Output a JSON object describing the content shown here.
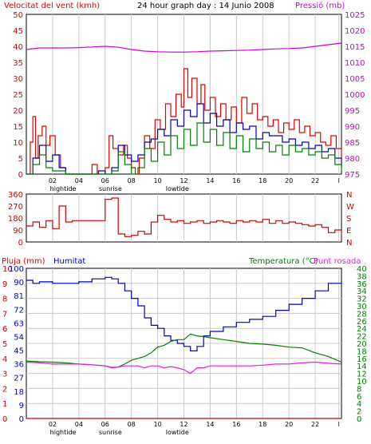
{
  "colors": {
    "wind": "#e00000",
    "gust": "#e00000",
    "avg": "#0000c0",
    "green": "#008000",
    "pressure": "#d000d0",
    "direction": "#d00000",
    "humidity": "#0000c0",
    "temperature": "#008000",
    "dewpoint": "#e020e0",
    "rain": "#d00000",
    "grid": "#c8c8c8"
  },
  "chart_data": [
    {
      "type": "line",
      "title": "24 hour graph day : 14 Junio 2008",
      "ylabel_left": "Velocitat del vent (kmh)",
      "ylabel_right": "Pressió (mb)",
      "ylim_left": [
        0,
        50
      ],
      "yticks_left": [
        "0",
        "5",
        "10",
        "15",
        "20",
        "25",
        "30",
        "35",
        "40",
        "45",
        "50"
      ],
      "ylim_right": [
        975,
        1025
      ],
      "yticks_right": [
        "975",
        "980",
        "985",
        "990",
        "995",
        "1000",
        "1005",
        "1010",
        "1015",
        "1020",
        "1025"
      ],
      "xlim": [
        0,
        24
      ],
      "xticks": [
        "02",
        "04",
        "06",
        "08",
        "10",
        "12",
        "14",
        "16",
        "18",
        "20",
        "22",
        "l"
      ],
      "xtick_positions": [
        2,
        4,
        6,
        8,
        10,
        12,
        14,
        16,
        18,
        20,
        22,
        23.8
      ],
      "annotations": [
        {
          "text": "hightide",
          "x": 2.8
        },
        {
          "text": "sunrise",
          "x": 6.4
        },
        {
          "text": "lowtide",
          "x": 11.5
        }
      ],
      "series": [
        {
          "key": "gust",
          "color": "#e00000",
          "x": [
            0,
            0.3,
            0.5,
            0.7,
            0.9,
            1.2,
            1.5,
            1.8,
            2.2,
            2.6,
            3,
            4,
            4.8,
            5,
            5.4,
            6,
            6.3,
            6.6,
            7,
            7.4,
            7.7,
            8,
            8.3,
            8.6,
            9,
            9.4,
            9.8,
            10.2,
            10.6,
            11,
            11.4,
            11.8,
            12,
            12.3,
            12.6,
            13,
            13.3,
            13.6,
            14,
            14.4,
            14.8,
            15.2,
            15.6,
            16,
            16.4,
            16.8,
            17.2,
            17.6,
            18,
            18.4,
            18.8,
            19.2,
            19.6,
            20,
            20.4,
            20.8,
            21.2,
            21.6,
            22,
            22.4,
            22.8,
            23.2,
            23.6,
            24
          ],
          "y": [
            0,
            10,
            18,
            5,
            12,
            15,
            9,
            12,
            6,
            2,
            0,
            0,
            0,
            3,
            0,
            2,
            12,
            8,
            6,
            9,
            5,
            2,
            0,
            5,
            12,
            8,
            17,
            14,
            22,
            18,
            25,
            21,
            33,
            24,
            30,
            22,
            28,
            20,
            24,
            18,
            22,
            17,
            21,
            16,
            24,
            19,
            22,
            17,
            18,
            15,
            17,
            13,
            16,
            14,
            17,
            13,
            15,
            12,
            13,
            10,
            9,
            12,
            8,
            5
          ]
        },
        {
          "key": "avg",
          "color": "#0000c0",
          "x": [
            0,
            0.5,
            1,
            1.5,
            2,
            2.5,
            3,
            4,
            5,
            5.5,
            6,
            6.5,
            7,
            7.5,
            8,
            8.5,
            9,
            9.5,
            10,
            10.5,
            11,
            11.5,
            12,
            12.5,
            13,
            13.5,
            14,
            14.5,
            15,
            15.5,
            16,
            16.5,
            17,
            17.5,
            18,
            18.5,
            19,
            19.5,
            20,
            20.5,
            21,
            21.5,
            22,
            22.5,
            23,
            23.5,
            24
          ],
          "y": [
            0,
            5,
            9,
            4,
            6,
            2,
            0,
            0,
            0,
            1,
            0,
            2,
            9,
            6,
            4,
            6,
            10,
            11,
            14,
            12,
            17,
            15,
            20,
            18,
            22,
            16,
            19,
            15,
            17,
            13,
            16,
            14,
            15,
            11,
            13,
            12,
            12,
            10,
            11,
            9,
            10,
            8,
            9,
            7,
            8,
            5,
            2
          ]
        },
        {
          "key": "green",
          "color": "#008000",
          "x": [
            0,
            0.5,
            1,
            1.5,
            2,
            3,
            4,
            5,
            6,
            6.5,
            7,
            7.5,
            8,
            8.5,
            9,
            9.5,
            10,
            10.5,
            11,
            11.5,
            12,
            12.5,
            13,
            13.5,
            14,
            14.5,
            15,
            15.5,
            16,
            16.5,
            17,
            17.5,
            18,
            18.5,
            19,
            19.5,
            20,
            20.5,
            21,
            21.5,
            22,
            22.5,
            23,
            23.5,
            24
          ],
          "y": [
            0,
            3,
            6,
            2,
            1,
            0,
            0,
            0,
            0,
            1,
            7,
            3,
            0,
            2,
            8,
            4,
            10,
            6,
            12,
            8,
            14,
            9,
            16,
            10,
            14,
            9,
            13,
            8,
            12,
            7,
            11,
            8,
            10,
            7,
            9,
            6,
            9,
            7,
            8,
            6,
            7,
            5,
            6,
            3,
            1
          ]
        },
        {
          "key": "pressure",
          "color": "#d000d0",
          "axis": "right",
          "x": [
            0,
            1,
            2,
            3,
            4,
            5,
            6,
            7,
            8,
            9,
            10,
            11,
            12,
            13,
            14,
            15,
            16,
            17,
            18,
            19,
            20,
            21,
            22,
            23,
            24
          ],
          "y": [
            1014,
            1014.5,
            1014.5,
            1014.5,
            1014.6,
            1014.8,
            1015,
            1014.7,
            1014,
            1013.5,
            1013.3,
            1013.2,
            1013.2,
            1013.3,
            1013.5,
            1013.6,
            1013.7,
            1013.8,
            1014,
            1014.2,
            1014.3,
            1014.5,
            1015,
            1015.5,
            1016
          ]
        }
      ]
    },
    {
      "type": "line",
      "title": "",
      "ylim": [
        0,
        360
      ],
      "yticks_left": [
        "0",
        "90",
        "180",
        "270",
        "360"
      ],
      "yticks_right": [
        "N",
        "E",
        "S",
        "W",
        "N"
      ],
      "xlim": [
        0,
        24
      ],
      "series": [
        {
          "key": "direction",
          "color": "#d00000",
          "x": [
            0,
            0.5,
            1,
            1.5,
            2,
            2.5,
            3,
            3.5,
            4,
            4.5,
            5,
            5.5,
            6,
            6.5,
            7,
            7.5,
            8,
            8.5,
            9,
            9.5,
            10,
            10.5,
            11,
            11.5,
            12,
            12.5,
            13,
            13.5,
            14,
            14.5,
            15,
            15.5,
            16,
            16.5,
            17,
            17.5,
            18,
            18.5,
            19,
            19.5,
            20,
            20.5,
            21,
            21.5,
            22,
            22.5,
            23,
            23.5,
            24
          ],
          "y": [
            120,
            150,
            110,
            160,
            100,
            270,
            150,
            160,
            160,
            160,
            160,
            160,
            320,
            330,
            60,
            40,
            50,
            80,
            60,
            150,
            200,
            170,
            150,
            160,
            140,
            150,
            160,
            140,
            150,
            160,
            150,
            140,
            160,
            150,
            160,
            150,
            170,
            140,
            160,
            140,
            150,
            140,
            130,
            120,
            130,
            110,
            70,
            90,
            50
          ]
        }
      ]
    },
    {
      "type": "line",
      "title": "",
      "ylabel_left_rain": "Pluja (mm)",
      "ylabel_humidity": "Humitat",
      "ylabel_right": "Temperatura (°C)",
      "ylabel_right2": "Punt rosada",
      "ylim_rain": [
        0,
        10
      ],
      "yticks_rain": [
        "0",
        "1",
        "2",
        "3",
        "4",
        "5",
        "6",
        "7",
        "8",
        "9",
        "10"
      ],
      "ylim_humidity": [
        0,
        100
      ],
      "yticks_humidity": [
        "0",
        "9",
        "18",
        "27",
        "36",
        "45",
        "54",
        "63",
        "72",
        "81",
        "90",
        "100"
      ],
      "ylim_temp": [
        0,
        40
      ],
      "yticks_temp": [
        "0",
        "2",
        "4",
        "6",
        "8",
        "10",
        "12",
        "14",
        "16",
        "18",
        "20",
        "22",
        "24",
        "26",
        "28",
        "30",
        "32",
        "34",
        "36",
        "38",
        "40"
      ],
      "xlim": [
        0,
        24
      ],
      "xticks": [
        "02",
        "04",
        "06",
        "08",
        "10",
        "12",
        "14",
        "16",
        "18",
        "20",
        "22",
        "l"
      ],
      "annotations": [
        {
          "text": "hightide",
          "x": 2.8
        },
        {
          "text": "sunrise",
          "x": 6.4
        },
        {
          "text": "lowtide",
          "x": 11.5
        }
      ],
      "series": [
        {
          "key": "humidity",
          "color": "#0000c0",
          "axis": "humidity",
          "x": [
            0,
            0.5,
            1,
            2,
            3,
            4,
            5,
            6,
            6.5,
            7,
            7.5,
            8,
            8.5,
            9,
            9.5,
            10,
            10.5,
            11,
            11.5,
            12,
            12.5,
            13,
            13.5,
            14,
            15,
            16,
            17,
            18,
            19,
            20,
            21,
            22,
            23,
            24
          ],
          "y": [
            92,
            90,
            91,
            90,
            90,
            91,
            93,
            94,
            93,
            90,
            85,
            80,
            75,
            67,
            62,
            60,
            55,
            52,
            50,
            48,
            45,
            48,
            55,
            58,
            61,
            64,
            66,
            68,
            72,
            76,
            80,
            85,
            90,
            92
          ]
        },
        {
          "key": "temperature",
          "color": "#008000",
          "axis": "temp",
          "x": [
            0,
            1,
            2,
            3,
            4,
            5,
            6,
            6.5,
            7,
            7.5,
            8,
            8.5,
            9,
            9.5,
            10,
            10.5,
            11,
            11.5,
            12,
            12.5,
            13,
            13.5,
            14,
            15,
            16,
            17,
            18,
            19,
            20,
            21,
            22,
            23,
            24
          ],
          "y": [
            15.3,
            15.1,
            15,
            14.8,
            14.5,
            14.3,
            14,
            13.6,
            13.7,
            14.5,
            15.5,
            16,
            16.5,
            17.5,
            19,
            19.5,
            20.5,
            21,
            21,
            22.5,
            22,
            21.8,
            21.5,
            21,
            20.5,
            20,
            19.8,
            19.5,
            19,
            18.8,
            17.5,
            16.5,
            15
          ]
        },
        {
          "key": "dewpoint",
          "color": "#e020e0",
          "axis": "temp",
          "x": [
            0,
            1,
            2,
            3,
            4,
            5,
            6,
            6.5,
            7,
            7.5,
            8,
            8.5,
            9,
            9.5,
            10,
            10.5,
            11,
            11.5,
            12,
            12.5,
            13,
            13.5,
            14,
            15,
            16,
            17,
            18,
            19,
            20,
            21,
            22,
            23,
            24
          ],
          "y": [
            15,
            14.8,
            14.5,
            14.5,
            14.5,
            14.3,
            14,
            13.5,
            13.7,
            14,
            14,
            14,
            13.5,
            14,
            14,
            13.5,
            13.8,
            13.5,
            13,
            12,
            13.5,
            13.5,
            14,
            14,
            14,
            14,
            14.2,
            14.5,
            14.5,
            14.8,
            15,
            14.7,
            14.5
          ]
        },
        {
          "key": "rain",
          "color": "#d00000",
          "axis": "rain",
          "x": [
            0,
            24
          ],
          "y": [
            0,
            0
          ]
        }
      ]
    }
  ],
  "labels": {
    "top_left": "Velocitat del vent (kmh)",
    "top_title": "24 hour graph day : 14 Junio 2008",
    "top_right": "Pressió (mb)",
    "rain": "Pluja (mm)",
    "humidity": "Humitat",
    "temperature": "Temperatura (°C)",
    "dewpoint": "Punt rosada"
  }
}
